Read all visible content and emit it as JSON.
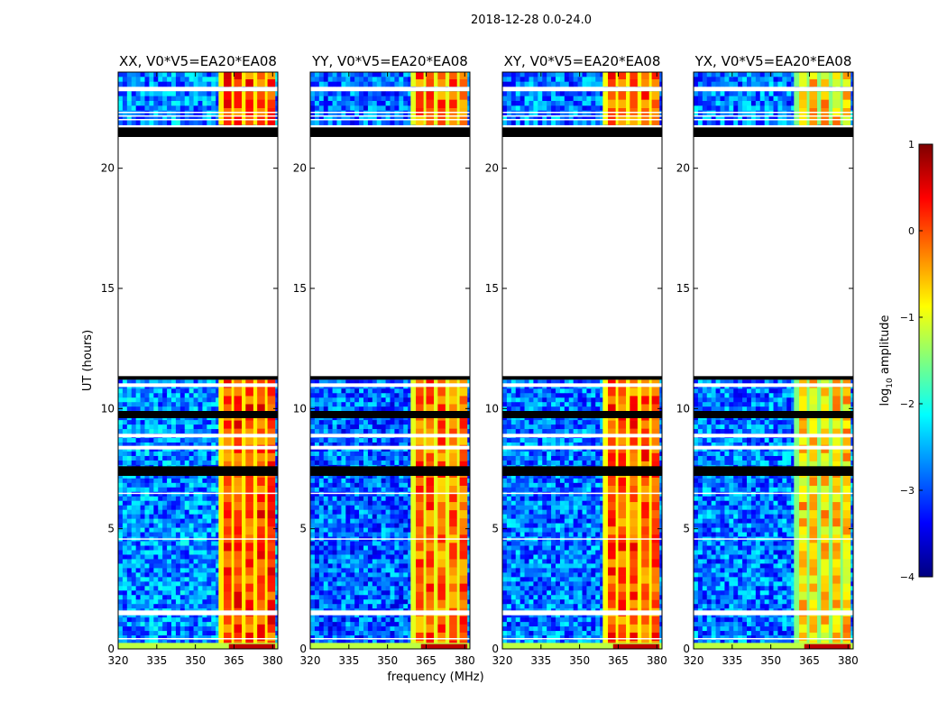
{
  "figure": {
    "suptitle": "2018-12-28 0.0-24.0",
    "ylabel": "UT (hours)",
    "xlabel": "frequency (MHz)",
    "colorbar_label_prefix": "log",
    "colorbar_label_sub": "10",
    "colorbar_label_suffix": " amplitude"
  },
  "chart_data": {
    "type": "heatmap",
    "title": "2018-12-28 0.0-24.0",
    "xlabel": "frequency (MHz)",
    "ylabel": "UT (hours)",
    "xlim": [
      320,
      382
    ],
    "ylim": [
      0,
      24
    ],
    "x_ticks": [
      320,
      335,
      350,
      365,
      380
    ],
    "y_ticks": [
      0,
      5,
      10,
      15,
      20
    ],
    "colorbar": {
      "label": "log10 amplitude",
      "range": [
        -4,
        1
      ],
      "ticks": [
        1,
        0,
        -1,
        -2,
        -3,
        -4
      ],
      "tick_labels": [
        "1",
        "0",
        "−1",
        "−2",
        "−3",
        "−4"
      ],
      "colormap": "jet"
    },
    "panels": [
      {
        "title": "XX, V0*V5=EA20*EA08",
        "band_level": -0.1,
        "bg_level": -2.7
      },
      {
        "title": "YY, V0*V5=EA20*EA08",
        "band_level": -0.3,
        "bg_level": -2.9
      },
      {
        "title": "XY, V0*V5=EA20*EA08",
        "band_level": -0.2,
        "bg_level": -2.8
      },
      {
        "title": "YX, V0*V5=EA20*EA08",
        "band_level": -0.8,
        "bg_level": -2.8
      }
    ],
    "rfi_band_mhz": [
      359,
      381
    ],
    "rfi_stripes_mhz": [
      [
        361,
        364
      ],
      [
        365,
        368
      ],
      [
        369.5,
        372.5
      ],
      [
        374,
        377
      ],
      [
        378,
        381
      ]
    ],
    "data_segments_ut": [
      [
        0,
        11.2
      ],
      [
        21.8,
        23.2
      ],
      [
        23.4,
        24
      ]
    ],
    "flagged_ut": [
      [
        21.3,
        21.7
      ],
      [
        11.2,
        11.35
      ],
      [
        9.6,
        9.9
      ],
      [
        7.2,
        7.6
      ]
    ],
    "blank_gaps_ut": [
      [
        0.4,
        0.45
      ],
      [
        1.4,
        1.6
      ],
      [
        4.55,
        4.6
      ],
      [
        6.45,
        6.5
      ],
      [
        8.3,
        8.45
      ],
      [
        8.8,
        8.95
      ],
      [
        10.9,
        11.05
      ],
      [
        22.0,
        22.05
      ],
      [
        22.15,
        22.2
      ],
      [
        22.3,
        22.35
      ]
    ],
    "colorbar_colors": [
      "#00007f",
      "#0000ff",
      "#007fff",
      "#00ffff",
      "#7fff7f",
      "#ffff00",
      "#ff7f00",
      "#ff0000",
      "#7f0000"
    ]
  }
}
